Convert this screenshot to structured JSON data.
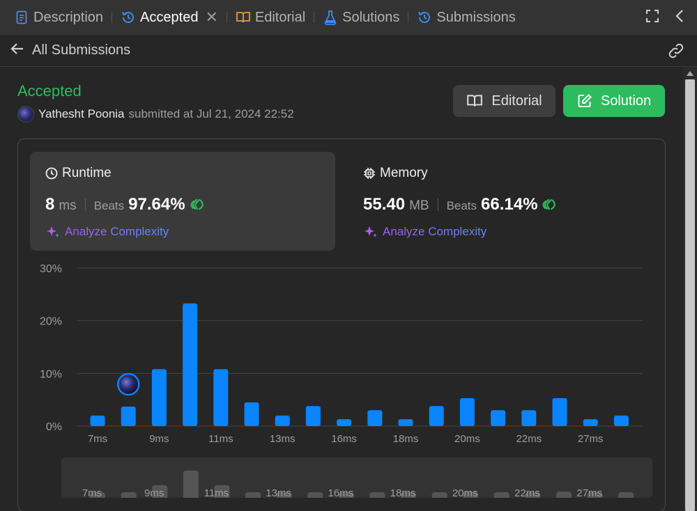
{
  "tabs": [
    {
      "label": "Description",
      "icon": "description-icon",
      "color": "#5b8ad8"
    },
    {
      "label": "Accepted",
      "icon": "history-icon",
      "color": "#3a8cf0",
      "active": true
    },
    {
      "label": "Editorial",
      "icon": "book-icon",
      "color": "#e0a23a"
    },
    {
      "label": "Solutions",
      "icon": "flask-icon",
      "color": "#3a8cf0"
    },
    {
      "label": "Submissions",
      "icon": "history-icon",
      "color": "#3a8cf0"
    }
  ],
  "subheader": {
    "title": "All Submissions"
  },
  "submission": {
    "status": "Accepted",
    "status_color": "#2cbb5d",
    "user": "Yathesht Poonia",
    "submitted_text": "submitted at Jul 21, 2024 22:52"
  },
  "buttons": {
    "editorial": "Editorial",
    "solution": "Solution"
  },
  "runtime": {
    "title": "Runtime",
    "value": "8",
    "unit": "ms",
    "beats_label": "Beats",
    "beats": "97.64%",
    "analyze": "Analyze Complexity"
  },
  "memory": {
    "title": "Memory",
    "value": "55.40",
    "unit": "MB",
    "beats_label": "Beats",
    "beats": "66.14%",
    "analyze": "Analyze Complexity"
  },
  "chart_data": {
    "type": "bar",
    "y_ticks": [
      "30%",
      "20%",
      "10%",
      "0%"
    ],
    "ylim": [
      0,
      30
    ],
    "x_tick_labels": [
      "7ms",
      "9ms",
      "11ms",
      "13ms",
      "16ms",
      "18ms",
      "20ms",
      "22ms",
      "27ms"
    ],
    "values": [
      2,
      3.7,
      10.8,
      23.3,
      10.8,
      4.5,
      2,
      3.8,
      1.3,
      3,
      1.3,
      3.8,
      5.3,
      3,
      3,
      5.3,
      1.3,
      2
    ],
    "user_bar_index": 1,
    "bar_color": "#0a84ff",
    "grid": true,
    "minimap_labels": [
      "7ms",
      "9ms",
      "11ms",
      "13ms",
      "16ms",
      "18ms",
      "20ms",
      "22ms",
      "27ms"
    ]
  }
}
